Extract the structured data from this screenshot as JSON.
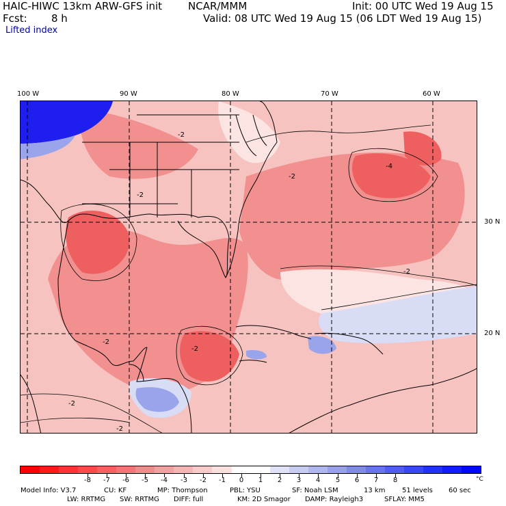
{
  "header": {
    "model_title": "HAIC-HIWC 13km ARW-GFS init",
    "org": "NCAR/MMM",
    "init": "Init: 00 UTC Wed 19 Aug 15",
    "fcst_label": "Fcst:",
    "fcst_value": "8 h",
    "valid": "Valid: 08 UTC Wed 19 Aug 15 (06 LDT Wed 19 Aug 15)",
    "field": "Lifted index"
  },
  "axes": {
    "longitudes": [
      "100 W",
      "90 W",
      "80 W",
      "70 W",
      "60 W"
    ],
    "latitudes": [
      "30 N",
      "20 N"
    ]
  },
  "map": {
    "variable": "Lifted index",
    "units": "°C",
    "contour_labels": [
      "-2",
      "-2",
      "-2",
      "-2",
      "-2",
      "-2",
      "-4",
      "-2",
      "-2"
    ],
    "gridlines": "dashed",
    "colors": {
      "strong_unstable": "#ee6060",
      "moderate_unstable": "#f29090",
      "weak_unstable": "#f6c3c0",
      "near_neutral": "#fbe4e2",
      "weak_stable": "#d8dcf5",
      "moderate_stable": "#9aa4ea",
      "strong_stable": "#1e1eee"
    }
  },
  "colorbar": {
    "tick_labels": [
      "-8",
      "-7",
      "-6",
      "-5",
      "-4",
      "-3",
      "-2",
      "-1",
      "0",
      "1",
      "2",
      "3",
      "4",
      "5",
      "6",
      "7",
      "8"
    ],
    "unit": "°C",
    "colors": [
      "#ff0000",
      "#ff1a1a",
      "#ff3333",
      "#fb4a4a",
      "#f76060",
      "#f47575",
      "#f38b8b",
      "#f4a0a0",
      "#f6b5b5",
      "#f8caca",
      "#fbe0e0",
      "#ffffff",
      "#ffffff",
      "#e0e2f8",
      "#c8ccf3",
      "#b0b6ee",
      "#98a0e9",
      "#808aea",
      "#6874eb",
      "#505ef0",
      "#3848f3",
      "#2032f6",
      "#101cf9",
      "#0008fc"
    ]
  },
  "footer": {
    "line1": [
      "Model Info: V3.7",
      "CU: KF",
      "MP: Thompson",
      "PBL: YSU",
      "SF: Noah LSM",
      "13 km",
      "51 levels",
      "60 sec"
    ],
    "line2": [
      "LW: RRTMG",
      "SW: RRTMG",
      "DIFF: full",
      "KM: 2D Smagor",
      "DAMP: Rayleigh3",
      "SFLAY: MM5"
    ]
  }
}
